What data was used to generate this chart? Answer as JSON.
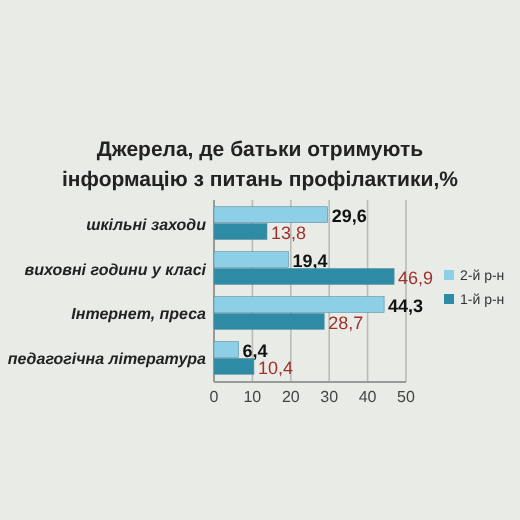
{
  "chart_data": {
    "type": "bar",
    "orientation": "horizontal",
    "title": "Джерела, де батьки отримують інформацію з питань профілактики,%",
    "categories": [
      "шкільні заходи",
      "виховні години у класі",
      "Інтернет, преса",
      "педагогічна література"
    ],
    "series": [
      {
        "name": "2-й р-н",
        "color": "#8ccfe6",
        "values": [
          29.6,
          19.4,
          44.3,
          6.4
        ],
        "value_labels": [
          "29,6",
          "19,4",
          "44,3",
          "6,4"
        ]
      },
      {
        "name": "1-й р-н",
        "color": "#2e8ba5",
        "values": [
          13.8,
          46.9,
          28.7,
          10.4
        ],
        "value_labels": [
          "13,8",
          "46,9",
          "28,7",
          "10,4"
        ]
      }
    ],
    "xlim": [
      0,
      50
    ],
    "xticks": [
      0,
      10,
      20,
      30,
      40,
      50
    ],
    "grid": "x",
    "legend": "right"
  }
}
